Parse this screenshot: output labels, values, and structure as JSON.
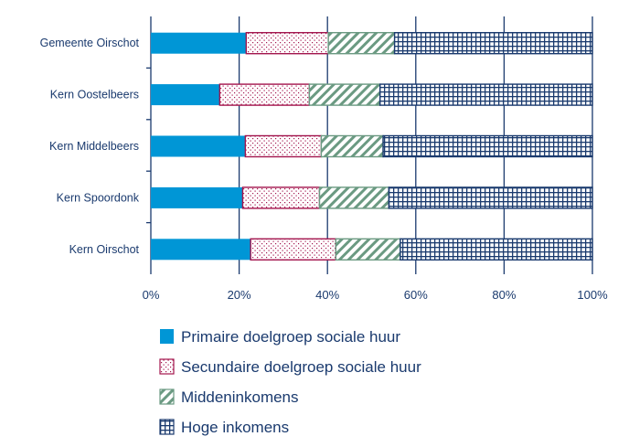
{
  "chart_data": {
    "type": "bar",
    "orientation": "horizontal",
    "stacked": true,
    "categories": [
      "Gemeente Oirschot",
      "Kern Oostelbeers",
      "Kern Middelbeers",
      "Kern Spoordonk",
      "Kern Oirschot"
    ],
    "series": [
      {
        "name": "Primaire doelgroep sociale huur",
        "values": [
          21.6,
          15.6,
          21.4,
          20.8,
          22.6
        ],
        "color": "#0096d6",
        "pattern": "solid"
      },
      {
        "name": "Secundaire doelgroep sociale huur",
        "values": [
          18.6,
          20.3,
          17.2,
          17.4,
          19.3
        ],
        "color": "#a3164e",
        "pattern": "dots"
      },
      {
        "name": "Middeninkomens",
        "values": [
          15.0,
          16.0,
          14.0,
          15.7,
          14.6
        ],
        "color": "#6b9a82",
        "pattern": "diagonal"
      },
      {
        "name": "Hoge inkomens",
        "values": [
          44.8,
          48.1,
          47.4,
          46.1,
          43.5
        ],
        "color": "#1a3a6e",
        "pattern": "grid"
      }
    ],
    "xlim": [
      0,
      100
    ],
    "xticks": [
      "0%",
      "20%",
      "40%",
      "60%",
      "80%",
      "100%"
    ],
    "grid": true,
    "legend": "bottom"
  }
}
